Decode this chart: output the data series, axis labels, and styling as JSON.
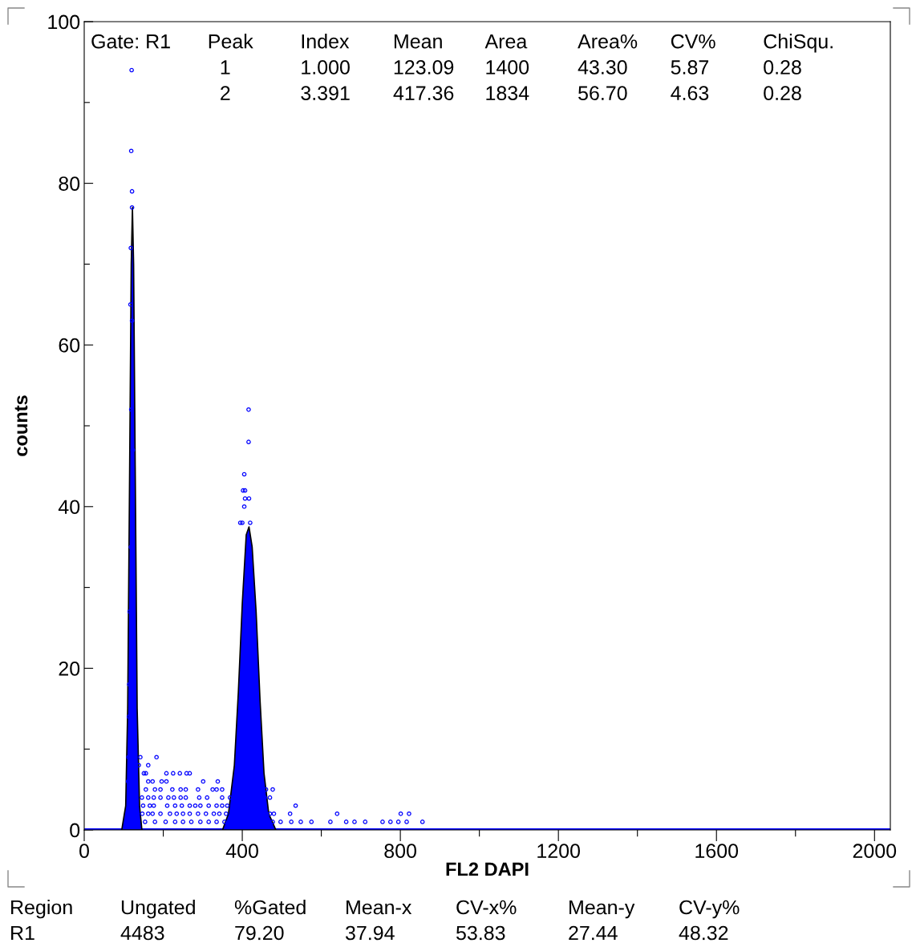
{
  "chart_data": {
    "type": "scatter",
    "xlabel": "FL2 DAPI",
    "ylabel": "counts",
    "xlim": [
      0,
      2040
    ],
    "ylim": [
      0,
      100
    ],
    "xticks": [
      0,
      {
        "value": 200,
        "label": null
      },
      400,
      {
        "value": 600,
        "label": null
      },
      800,
      {
        "value": 1000,
        "label": null
      },
      1200,
      {
        "value": 1400,
        "label": null
      },
      1600,
      {
        "value": 1800,
        "label": null
      },
      2000
    ],
    "yticks": [
      0,
      {
        "value": 10,
        "label": null
      },
      20,
      {
        "value": 30,
        "label": null
      },
      40,
      {
        "value": 50,
        "label": null
      },
      60,
      {
        "value": 70,
        "label": null
      },
      80,
      {
        "value": 90,
        "label": null
      },
      100
    ],
    "series": [
      {
        "type": "line",
        "color": "#0000ff",
        "x": [
          0,
          2040
        ],
        "values": [
          0,
          0
        ]
      },
      {
        "type": "area",
        "color": "#0000ff",
        "x": [
          95,
          105,
          110,
          115,
          119,
          122,
          125,
          129,
          134,
          140,
          146
        ],
        "values": [
          0,
          3,
          15,
          45,
          70,
          77,
          70,
          45,
          15,
          3,
          0
        ]
      },
      {
        "type": "area",
        "color": "#0000ff",
        "x": [
          350,
          365,
          380,
          390,
          400,
          410,
          417,
          425,
          435,
          445,
          455,
          467,
          485
        ],
        "values": [
          0,
          2,
          8,
          17,
          28,
          36.5,
          37.5,
          35,
          27,
          16,
          7,
          2,
          0
        ]
      },
      {
        "color": "#0000ff",
        "marker": "circle",
        "x": [
          120,
          119,
          121,
          121,
          118,
          117,
          121,
          119,
          123,
          118,
          115,
          114,
          113,
          112,
          111,
          142,
          183,
          138,
          162,
          151,
          156,
          208,
          225,
          242,
          259,
          267,
          162,
          173,
          196,
          208,
          301,
          338,
          156,
          179,
          193,
          223,
          244,
          257,
          288,
          325,
          335,
          349,
          460,
          477,
          146,
          162,
          176,
          193,
          213,
          227,
          244,
          257,
          291,
          311,
          349,
          369,
          457,
          470,
          149,
          166,
          176,
          210,
          230,
          247,
          267,
          281,
          294,
          315,
          335,
          349,
          362,
          535,
          147,
          162,
          173,
          193,
          217,
          234,
          250,
          267,
          288,
          308,
          328,
          342,
          359,
          470,
          480,
          521,
          640,
          801,
          822,
          154,
          179,
          206,
          230,
          250,
          271,
          294,
          315,
          335,
          355,
          477,
          497,
          524,
          548,
          575,
          623,
          663,
          684,
          711,
          755,
          775,
          795,
          816,
          856,
          416,
          416,
          405,
          402,
          407,
          407,
          417,
          405,
          395,
          400,
          420
        ],
        "values": [
          94,
          84,
          79,
          77,
          72,
          65,
          63,
          52,
          47,
          35,
          27,
          18,
          14,
          9,
          6,
          9,
          9,
          8,
          8,
          7,
          7,
          7,
          7,
          7,
          7,
          7,
          6,
          6,
          6,
          6,
          6,
          6,
          5,
          5,
          5,
          5,
          5,
          5,
          5,
          5,
          5,
          5,
          5,
          5,
          4,
          4,
          4,
          4,
          4,
          4,
          4,
          4,
          4,
          4,
          4,
          4,
          4,
          4,
          3,
          3,
          3,
          3,
          3,
          3,
          3,
          3,
          3,
          3,
          3,
          3,
          3,
          3,
          2,
          2,
          2,
          2,
          2,
          2,
          2,
          2,
          2,
          2,
          2,
          2,
          2,
          2,
          2,
          2,
          2,
          2,
          2,
          1,
          1,
          1,
          1,
          1,
          1,
          1,
          1,
          1,
          1,
          1,
          1,
          1,
          1,
          1,
          1,
          1,
          1,
          1,
          1,
          1,
          1,
          1,
          1,
          52,
          48,
          44,
          42,
          42,
          41,
          41,
          40,
          38,
          38,
          38
        ]
      }
    ],
    "annotations": [
      "Gate: R1",
      "Peak",
      "Index",
      "Mean",
      "Area",
      "Area%",
      "CV%",
      "ChiSqu.",
      "1",
      "1.000",
      "123.09",
      "1400",
      "43.30",
      "5.87",
      "0.28",
      "2",
      "3.391",
      "417.36",
      "1834",
      "56.70",
      "4.63",
      "0.28",
      "Region",
      "Ungated",
      "%Gated",
      "Mean-x",
      "CV-x%",
      "Mean-y",
      "CV-y%",
      "R1",
      "4483",
      "79.20",
      "37.94",
      "53.83",
      "27.44",
      "48.32"
    ]
  }
}
